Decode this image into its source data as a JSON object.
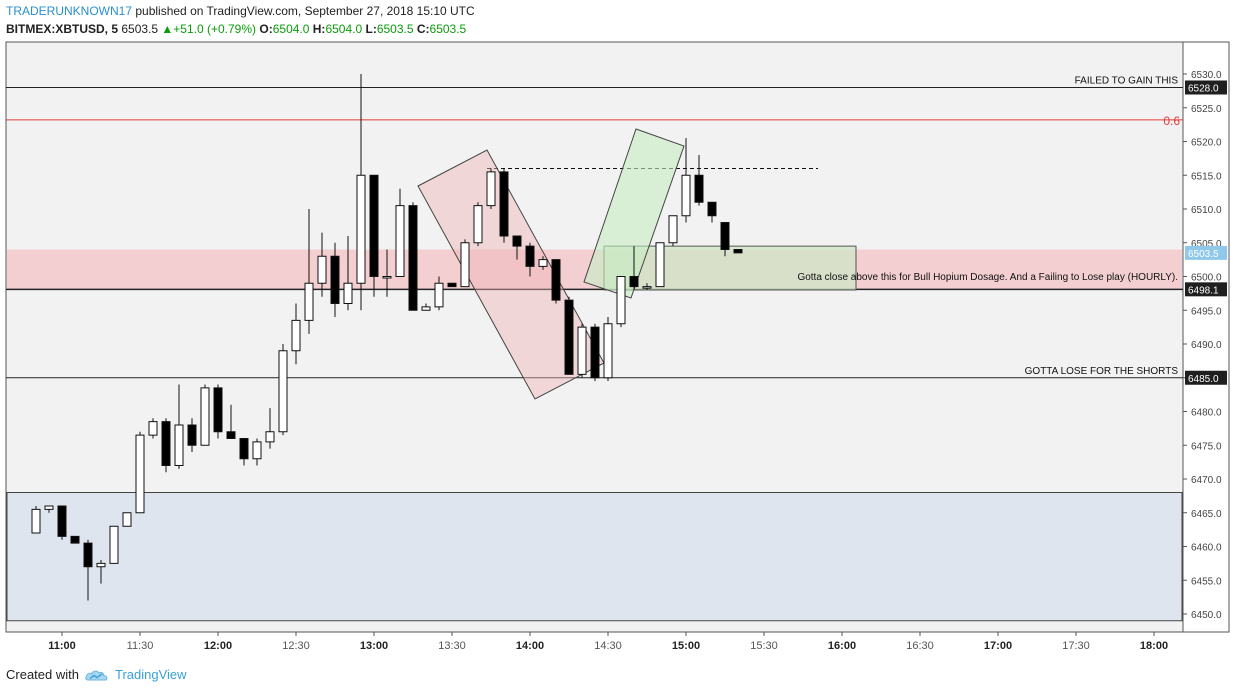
{
  "header": {
    "author": "TRADERUNKNOWN17",
    "published": "published on TradingView.com, September 27, 2018 15:10 UTC",
    "symbol": "BITMEX:XBTUSD, 5",
    "last": "6503.5",
    "change": "+51.0 (+0.79%)",
    "o_label": "O:",
    "o_value": "6504.0",
    "h_label": "H:",
    "h_value": "6504.0",
    "l_label": "L:",
    "l_value": "6503.5",
    "c_label": "C:",
    "c_value": "6503.5"
  },
  "footer": {
    "created_with": "Created with",
    "brand": "TradingView"
  },
  "colors": {
    "background": "#f2f2f2",
    "red_zone": "#f3cfd1",
    "blue_zone": "#dfe5ee",
    "green_zone": "#cfe6c6",
    "fib_line": "#e23b3b",
    "price_badge": "#1f1f1f",
    "last_price_badge": "#8fc8ea"
  },
  "chart_data": {
    "type": "candlestick",
    "symbol": "BITMEX:XBTUSD",
    "interval": "5",
    "ylim": [
      6448,
      6532
    ],
    "y_ticks": [
      6450.0,
      6455.0,
      6460.0,
      6465.0,
      6470.0,
      6475.0,
      6480.0,
      6485.0,
      6490.0,
      6495.0,
      6500.0,
      6505.0,
      6510.0,
      6515.0,
      6520.0,
      6525.0,
      6530.0
    ],
    "x_ticks": [
      "11:00",
      "11:30",
      "12:00",
      "12:30",
      "13:00",
      "13:30",
      "14:00",
      "14:30",
      "15:00",
      "15:30",
      "16:00",
      "16:30",
      "17:00",
      "17:30",
      "18:00"
    ],
    "x_start": "10:50",
    "bar_minutes": 5,
    "candles": [
      {
        "t": "10:50",
        "o": 6462,
        "h": 6466,
        "l": 6462,
        "c": 6465.5
      },
      {
        "t": "10:55",
        "o": 6465.5,
        "h": 6466,
        "l": 6465,
        "c": 6466
      },
      {
        "t": "11:00",
        "o": 6466,
        "h": 6466,
        "l": 6461,
        "c": 6461.5
      },
      {
        "t": "11:05",
        "o": 6461.5,
        "h": 6461.5,
        "l": 6460.5,
        "c": 6460.5
      },
      {
        "t": "11:10",
        "o": 6460.5,
        "h": 6461,
        "l": 6452,
        "c": 6457
      },
      {
        "t": "11:15",
        "o": 6457,
        "h": 6458,
        "l": 6454.5,
        "c": 6457.5
      },
      {
        "t": "11:20",
        "o": 6457.5,
        "h": 6463,
        "l": 6457.5,
        "c": 6463
      },
      {
        "t": "11:25",
        "o": 6463,
        "h": 6465,
        "l": 6463,
        "c": 6465
      },
      {
        "t": "11:30",
        "o": 6465,
        "h": 6477,
        "l": 6465,
        "c": 6476.5
      },
      {
        "t": "11:35",
        "o": 6476.5,
        "h": 6479,
        "l": 6476,
        "c": 6478.5
      },
      {
        "t": "11:40",
        "o": 6478.5,
        "h": 6479,
        "l": 6471,
        "c": 6472
      },
      {
        "t": "11:45",
        "o": 6472,
        "h": 6484,
        "l": 6471.5,
        "c": 6478
      },
      {
        "t": "11:50",
        "o": 6478,
        "h": 6479,
        "l": 6474,
        "c": 6475
      },
      {
        "t": "11:55",
        "o": 6475,
        "h": 6484,
        "l": 6475,
        "c": 6483.5
      },
      {
        "t": "12:00",
        "o": 6483.5,
        "h": 6484,
        "l": 6476,
        "c": 6477
      },
      {
        "t": "12:05",
        "o": 6477,
        "h": 6481,
        "l": 6476,
        "c": 6476
      },
      {
        "t": "12:10",
        "o": 6476,
        "h": 6476,
        "l": 6472,
        "c": 6473
      },
      {
        "t": "12:15",
        "o": 6473,
        "h": 6476,
        "l": 6472,
        "c": 6475.5
      },
      {
        "t": "12:20",
        "o": 6475.5,
        "h": 6480.5,
        "l": 6474.5,
        "c": 6477
      },
      {
        "t": "12:25",
        "o": 6477,
        "h": 6490,
        "l": 6476.5,
        "c": 6489
      },
      {
        "t": "12:30",
        "o": 6489,
        "h": 6496,
        "l": 6487,
        "c": 6493.5
      },
      {
        "t": "12:35",
        "o": 6493.5,
        "h": 6510,
        "l": 6491.5,
        "c": 6499
      },
      {
        "t": "12:40",
        "o": 6499,
        "h": 6506.5,
        "l": 6497,
        "c": 6503
      },
      {
        "t": "12:45",
        "o": 6503,
        "h": 6505,
        "l": 6494,
        "c": 6496
      },
      {
        "t": "12:50",
        "o": 6496,
        "h": 6506,
        "l": 6495,
        "c": 6499
      },
      {
        "t": "12:55",
        "o": 6499,
        "h": 6530,
        "l": 6495,
        "c": 6515
      },
      {
        "t": "13:00",
        "o": 6515,
        "h": 6515,
        "l": 6497,
        "c": 6500
      },
      {
        "t": "13:05",
        "o": 6500,
        "h": 6504,
        "l": 6497,
        "c": 6500
      },
      {
        "t": "13:10",
        "o": 6500,
        "h": 6513,
        "l": 6500,
        "c": 6510.5
      },
      {
        "t": "13:15",
        "o": 6510.5,
        "h": 6511,
        "l": 6495,
        "c": 6495
      },
      {
        "t": "13:20",
        "o": 6495,
        "h": 6496,
        "l": 6495,
        "c": 6495.5
      },
      {
        "t": "13:25",
        "o": 6495.5,
        "h": 6500,
        "l": 6495,
        "c": 6499
      },
      {
        "t": "13:30",
        "o": 6499,
        "h": 6499,
        "l": 6498.5,
        "c": 6498.5
      },
      {
        "t": "13:35",
        "o": 6498.5,
        "h": 6505.5,
        "l": 6498.5,
        "c": 6505
      },
      {
        "t": "13:40",
        "o": 6505,
        "h": 6511,
        "l": 6504.5,
        "c": 6510.5
      },
      {
        "t": "13:45",
        "o": 6510.5,
        "h": 6516,
        "l": 6510,
        "c": 6515.5
      },
      {
        "t": "13:50",
        "o": 6515.5,
        "h": 6516,
        "l": 6505,
        "c": 6506
      },
      {
        "t": "13:55",
        "o": 6506,
        "h": 6506,
        "l": 6502.5,
        "c": 6504.5
      },
      {
        "t": "14:00",
        "o": 6504.5,
        "h": 6505,
        "l": 6500,
        "c": 6501.5
      },
      {
        "t": "14:05",
        "o": 6501.5,
        "h": 6503,
        "l": 6501,
        "c": 6502.5
      },
      {
        "t": "14:10",
        "o": 6502.5,
        "h": 6502.5,
        "l": 6496,
        "c": 6496.5
      },
      {
        "t": "14:15",
        "o": 6496.5,
        "h": 6497,
        "l": 6485.5,
        "c": 6485.5
      },
      {
        "t": "14:20",
        "o": 6485.5,
        "h": 6493,
        "l": 6485,
        "c": 6492.5
      },
      {
        "t": "14:25",
        "o": 6492.5,
        "h": 6493,
        "l": 6484.5,
        "c": 6485
      },
      {
        "t": "14:30",
        "o": 6485,
        "h": 6494,
        "l": 6484.5,
        "c": 6493
      },
      {
        "t": "14:35",
        "o": 6493,
        "h": 6500,
        "l": 6492.5,
        "c": 6500
      },
      {
        "t": "14:40",
        "o": 6500,
        "h": 6504.5,
        "l": 6498,
        "c": 6498.5
      },
      {
        "t": "14:45",
        "o": 6498.5,
        "h": 6499,
        "l": 6498,
        "c": 6498.5
      },
      {
        "t": "14:50",
        "o": 6498.5,
        "h": 6505,
        "l": 6498.5,
        "c": 6505
      },
      {
        "t": "14:55",
        "o": 6505,
        "h": 6509,
        "l": 6504.5,
        "c": 6509
      },
      {
        "t": "15:00",
        "o": 6509,
        "h": 6520.5,
        "l": 6508,
        "c": 6515
      },
      {
        "t": "15:05",
        "o": 6515,
        "h": 6518,
        "l": 6510.5,
        "c": 6511
      },
      {
        "t": "15:10",
        "o": 6511,
        "h": 6511,
        "l": 6508,
        "c": 6509
      },
      {
        "t": "15:15",
        "o": 6508,
        "h": 6508,
        "l": 6503,
        "c": 6504
      },
      {
        "t": "15:20",
        "o": 6504,
        "h": 6504,
        "l": 6503.5,
        "c": 6503.5
      }
    ],
    "levels": [
      {
        "price": 6528.0,
        "label": "FAILED TO GAIN THIS",
        "badge": "6528.0"
      },
      {
        "price": 6523.2,
        "label": "0.6",
        "badge": ""
      },
      {
        "price": 6498.1,
        "label": "",
        "badge": "6498.1"
      },
      {
        "price": 6485.0,
        "label": "GOTTA LOSE FOR THE SHORTS",
        "badge": "6485.0"
      }
    ],
    "last_price": "6503.5",
    "annotation": "Gotta close above this for Bull Hopium Dosage. And a Failing to Lose play (HOURLY).",
    "zones": [
      {
        "kind": "red",
        "from": 6498,
        "to": 6504
      },
      {
        "kind": "blue",
        "from": 6449,
        "to": 6468
      },
      {
        "kind": "green",
        "from": 6498,
        "to": 6504.5
      }
    ],
    "dashed_level": 6516
  }
}
